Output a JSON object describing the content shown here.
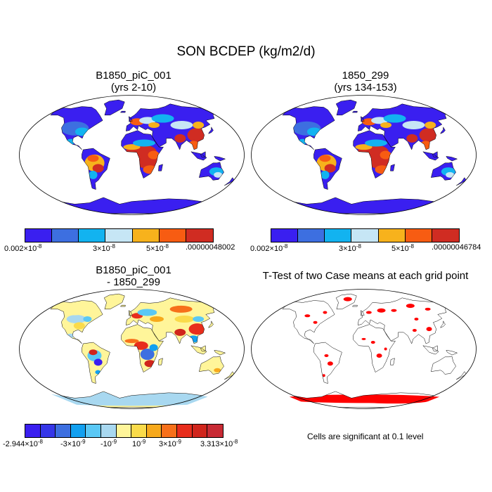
{
  "figure": {
    "title": "SON BCDEP (kg/m2/d)"
  },
  "panels": [
    {
      "id": "case1",
      "title_line1": "B1850_piC_001",
      "title_line2": "(yrs 2-10)",
      "colorbar": {
        "colors": [
          "#3a1ff0",
          "#3d6fe0",
          "#12b3f0",
          "#c6e6f5",
          "#f7b21c",
          "#f75c12",
          "#d02c22"
        ],
        "labels": [
          {
            "base": "0.002",
            "exp": "×10",
            "pow": "-8"
          },
          {
            "base": "3",
            "exp": "×10",
            "pow": "-8"
          },
          {
            "base": "5",
            "exp": "×10",
            "pow": "-8"
          },
          {
            "base": ".00000048002",
            "exp": "",
            "pow": ""
          }
        ]
      }
    },
    {
      "id": "case2",
      "title_line1": "1850_299",
      "title_line2": "(yrs 134-153)",
      "colorbar": {
        "colors": [
          "#3a1ff0",
          "#3d6fe0",
          "#12b3f0",
          "#c6e6f5",
          "#f7b21c",
          "#f75c12",
          "#d02c22"
        ],
        "labels": [
          {
            "base": "0.002",
            "exp": "×10",
            "pow": "-8"
          },
          {
            "base": "3",
            "exp": "×10",
            "pow": "-8"
          },
          {
            "base": "5",
            "exp": "×10",
            "pow": "-8"
          },
          {
            "base": ".00000046784",
            "exp": "",
            "pow": ""
          }
        ]
      }
    },
    {
      "id": "diff",
      "title_line1": "B1850_piC_001",
      "title_line2": "- 1850_299",
      "colorbar": {
        "colors": [
          "#3a1ff0",
          "#3536e8",
          "#3d6fe0",
          "#12a0f0",
          "#5ac8f5",
          "#a8d8f0",
          "#fff59a",
          "#fadb4a",
          "#f7a91c",
          "#f7701a",
          "#e82d1c",
          "#d0251c",
          "#c82a34"
        ],
        "labels": [
          {
            "base": "-2.944",
            "exp": "×10",
            "pow": "-8"
          },
          {
            "base": "-3",
            "exp": "×10",
            "pow": "-9"
          },
          {
            "base": "-10",
            "exp": "",
            "pow": "-9"
          },
          {
            "base": "10",
            "exp": "",
            "pow": "-9"
          },
          {
            "base": "3",
            "exp": "×10",
            "pow": "-9"
          },
          {
            "base": "3.313",
            "exp": "×10",
            "pow": "-8"
          }
        ]
      }
    },
    {
      "id": "ttest",
      "title_line1": "T-Test of two Case means at each grid point",
      "note": "Cells are significant at 0.1 level",
      "signif_color": "#ff0000"
    }
  ],
  "map_colors": {
    "ocean": "#ffffff",
    "outline": "#000000"
  }
}
